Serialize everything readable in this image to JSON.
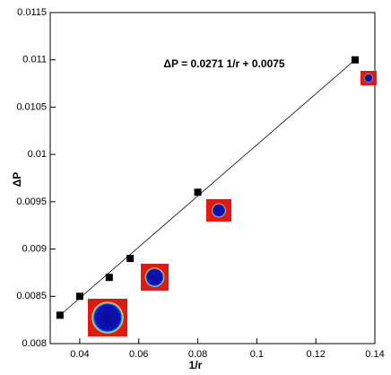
{
  "chart_data": {
    "type": "scatter",
    "annotation": "ΔP = 0.0271 1/r + 0.0075",
    "x_label": "1/r",
    "y_label": "ΔP",
    "x": [
      0.0333,
      0.04,
      0.05,
      0.0571,
      0.08,
      0.1333
    ],
    "values": [
      0.0083,
      0.0085,
      0.0087,
      0.0089,
      0.0096,
      0.011
    ],
    "color": "#000000",
    "fit": {
      "x": [
        0.0333,
        0.1333
      ],
      "values": [
        0.0083,
        0.011
      ],
      "color": "#000000"
    },
    "xlim": [
      0.03,
      0.14
    ],
    "xticks": [
      0.04,
      0.06,
      0.08,
      0.1,
      0.12,
      0.14
    ],
    "ylim": [
      0.008,
      0.0115
    ],
    "yticks": [
      0.008,
      0.0085,
      0.009,
      0.0095,
      0.01,
      0.0105,
      0.011,
      0.0115
    ]
  }
}
